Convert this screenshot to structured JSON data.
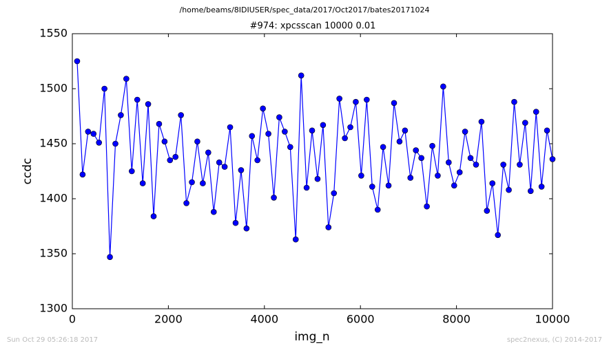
{
  "chart_data": {
    "type": "line",
    "suptitle": "/home/beams/8IDIUSER/spec_data/2017/Oct2017/bates20171024",
    "title": "#974: xpcsscan 10000 0.01",
    "x_label": "img_n",
    "y_label": "ccdc",
    "footer_left": "Sun Oct 29 05:26:18 2017",
    "footer_right": "spec2nexus, (C) 2014-2017",
    "x": [
      100,
      214,
      328,
      441,
      555,
      669,
      783,
      897,
      1010,
      1124,
      1238,
      1352,
      1466,
      1579,
      1693,
      1807,
      1921,
      2034,
      2148,
      2262,
      2376,
      2490,
      2603,
      2717,
      2831,
      2945,
      3059,
      3172,
      3286,
      3400,
      3514,
      3628,
      3741,
      3855,
      3969,
      4083,
      4197,
      4310,
      4424,
      4538,
      4652,
      4766,
      4879,
      4993,
      5107,
      5221,
      5334,
      5448,
      5562,
      5676,
      5790,
      5903,
      6017,
      6131,
      6245,
      6359,
      6472,
      6586,
      6700,
      6814,
      6928,
      7041,
      7155,
      7269,
      7383,
      7497,
      7610,
      7724,
      7838,
      7952,
      8066,
      8179,
      8293,
      8407,
      8521,
      8634,
      8748,
      8862,
      8976,
      9090,
      9203,
      9317,
      9431,
      9545,
      9659,
      9772,
      9886,
      10000
    ],
    "values": [
      1525,
      1422,
      1461,
      1459,
      1451,
      1500,
      1347,
      1450,
      1476,
      1509,
      1425,
      1490,
      1414,
      1486,
      1384,
      1468,
      1452,
      1435,
      1438,
      1476,
      1396,
      1415,
      1452,
      1414,
      1442,
      1388,
      1433,
      1429,
      1465,
      1378,
      1426,
      1373,
      1457,
      1435,
      1482,
      1459,
      1401,
      1474,
      1461,
      1447,
      1363,
      1512,
      1410,
      1462,
      1418,
      1467,
      1374,
      1405,
      1491,
      1455,
      1465,
      1488,
      1421,
      1490,
      1411,
      1390,
      1447,
      1412,
      1487,
      1452,
      1462,
      1419,
      1444,
      1437,
      1393,
      1448,
      1421,
      1502,
      1433,
      1412,
      1424,
      1461,
      1437,
      1431,
      1470,
      1389,
      1414,
      1367,
      1431,
      1408,
      1488,
      1431,
      1469,
      1407,
      1479,
      1411,
      1462,
      1436
    ],
    "color": "#0000ff",
    "xlim": [
      0,
      10000
    ],
    "xticks": [
      0,
      2000,
      4000,
      6000,
      8000,
      10000
    ],
    "ylim": [
      1300,
      1550
    ],
    "yticks": [
      1300,
      1350,
      1400,
      1450,
      1500,
      1550
    ],
    "grid": false
  }
}
